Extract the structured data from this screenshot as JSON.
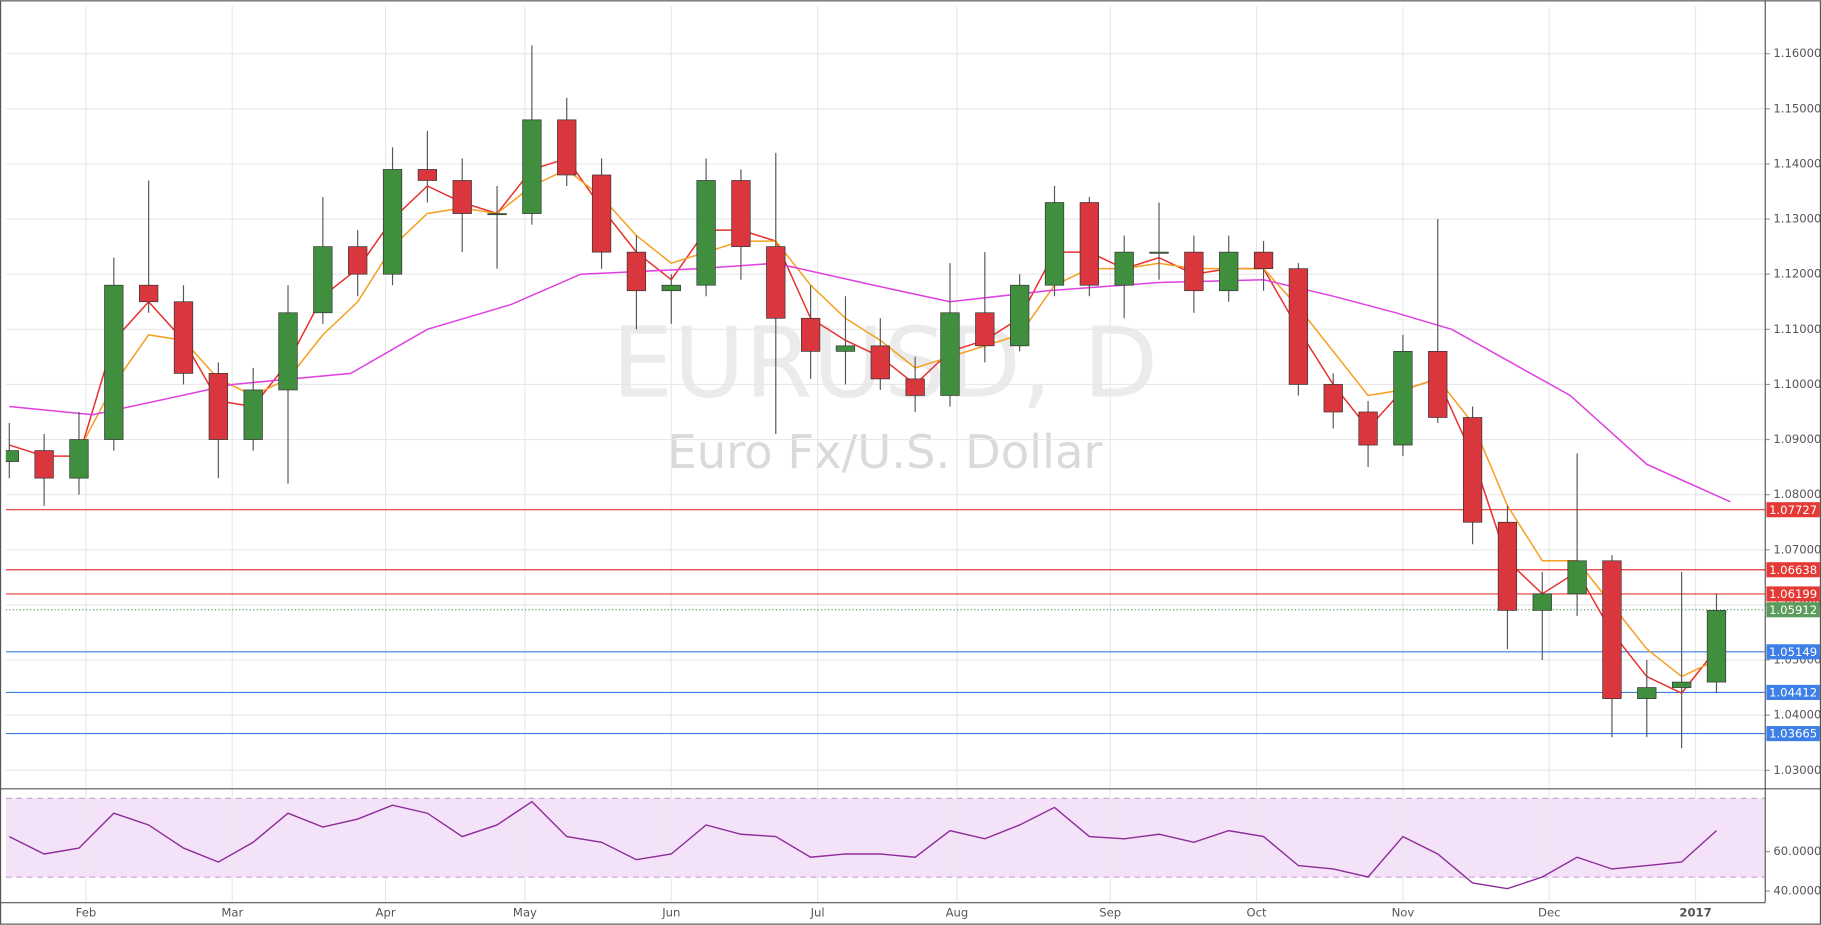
{
  "chart_data": [
    {
      "type": "candlestick",
      "title": "EURUSD, D",
      "subtitle": "Euro Fx/U.S. Dollar",
      "x": [
        0,
        5,
        10,
        15,
        20,
        25,
        30,
        35,
        40,
        45,
        50,
        55,
        60,
        65,
        70,
        75,
        80,
        85,
        90,
        95,
        100,
        105,
        110,
        115,
        120,
        125,
        130,
        135,
        140,
        145,
        150,
        155,
        160,
        165,
        170,
        175,
        180,
        185,
        190,
        195,
        200,
        205,
        210,
        215,
        220,
        225,
        230,
        235,
        240,
        245
      ],
      "open": [
        1.086,
        1.088,
        1.083,
        1.09,
        1.118,
        1.115,
        1.102,
        1.09,
        1.099,
        1.113,
        1.125,
        1.12,
        1.139,
        1.137,
        1.131,
        1.131,
        1.148,
        1.138,
        1.124,
        1.117,
        1.118,
        1.137,
        1.125,
        1.112,
        1.106,
        1.107,
        1.101,
        1.098,
        1.113,
        1.107,
        1.118,
        1.133,
        1.118,
        1.124,
        1.124,
        1.117,
        1.124,
        1.121,
        1.1,
        1.095,
        1.089,
        1.106,
        1.094,
        1.075,
        1.059,
        1.062,
        1.068,
        1.043,
        1.045,
        1.046
      ],
      "high": [
        1.093,
        1.091,
        1.095,
        1.123,
        1.137,
        1.118,
        1.104,
        1.103,
        1.118,
        1.134,
        1.128,
        1.143,
        1.146,
        1.141,
        1.136,
        1.1615,
        1.152,
        1.141,
        1.127,
        1.12,
        1.141,
        1.139,
        1.142,
        1.118,
        1.116,
        1.112,
        1.105,
        1.122,
        1.124,
        1.12,
        1.136,
        1.134,
        1.127,
        1.133,
        1.127,
        1.127,
        1.126,
        1.122,
        1.102,
        1.097,
        1.109,
        1.13,
        1.096,
        1.078,
        1.066,
        1.0875,
        1.069,
        1.05,
        1.066,
        1.062
      ],
      "low": [
        1.083,
        1.078,
        1.08,
        1.088,
        1.113,
        1.1,
        1.083,
        1.088,
        1.082,
        1.111,
        1.116,
        1.118,
        1.133,
        1.124,
        1.121,
        1.129,
        1.136,
        1.121,
        1.11,
        1.111,
        1.116,
        1.119,
        1.091,
        1.101,
        1.1,
        1.099,
        1.095,
        1.096,
        1.104,
        1.106,
        1.116,
        1.116,
        1.112,
        1.119,
        1.113,
        1.115,
        1.117,
        1.098,
        1.092,
        1.085,
        1.087,
        1.093,
        1.071,
        1.052,
        1.05,
        1.058,
        1.036,
        1.036,
        1.034,
        1.044
      ],
      "close": [
        1.088,
        1.083,
        1.09,
        1.118,
        1.115,
        1.102,
        1.09,
        1.099,
        1.113,
        1.125,
        1.12,
        1.139,
        1.137,
        1.131,
        1.131,
        1.148,
        1.138,
        1.124,
        1.117,
        1.118,
        1.137,
        1.125,
        1.112,
        1.106,
        1.107,
        1.101,
        1.098,
        1.113,
        1.107,
        1.118,
        1.133,
        1.118,
        1.124,
        1.124,
        1.117,
        1.124,
        1.121,
        1.1,
        1.095,
        1.089,
        1.106,
        1.094,
        1.075,
        1.059,
        1.062,
        1.068,
        1.043,
        1.045,
        1.046,
        1.059
      ],
      "up_color": "#3f8f3f",
      "down_color": "#d9363e",
      "lines": [
        {
          "color": "#e8312e",
          "values": [
            1.089,
            1.087,
            1.087,
            1.108,
            1.115,
            1.108,
            1.097,
            1.096,
            1.104,
            1.116,
            1.121,
            1.13,
            1.136,
            1.133,
            1.131,
            1.139,
            1.141,
            1.132,
            1.124,
            1.119,
            1.128,
            1.128,
            1.126,
            1.112,
            1.108,
            1.105,
            1.1,
            1.106,
            1.108,
            1.112,
            1.124,
            1.124,
            1.121,
            1.123,
            1.12,
            1.121,
            1.121,
            1.11,
            1.1,
            1.092,
            1.099,
            1.101,
            1.087,
            1.068,
            1.062,
            1.066,
            1.055,
            1.047,
            1.044,
            1.052
          ]
        },
        {
          "color": "#f5a020",
          "values": [
            null,
            null,
            1.088,
            1.1,
            1.109,
            1.108,
            1.101,
            1.098,
            1.101,
            1.109,
            1.115,
            1.125,
            1.131,
            1.132,
            1.131,
            1.136,
            1.139,
            1.134,
            1.127,
            1.122,
            1.124,
            1.126,
            1.126,
            1.118,
            1.112,
            1.108,
            1.103,
            1.105,
            1.107,
            1.109,
            1.118,
            1.121,
            1.121,
            1.122,
            1.121,
            1.121,
            1.121,
            1.114,
            1.106,
            1.098,
            1.099,
            1.101,
            1.093,
            1.078,
            1.068,
            1.068,
            1.06,
            1.052,
            1.047,
            1.05
          ]
        },
        {
          "color": "#e040e0",
          "x": [
            0,
            12,
            32,
            49,
            60,
            72,
            82,
            99,
            110,
            124,
            135,
            149,
            165,
            180,
            190,
            199,
            207,
            224,
            235,
            247
          ],
          "values": [
            1.096,
            1.0945,
            1.1,
            1.102,
            1.11,
            1.1145,
            1.12,
            1.121,
            1.122,
            1.118,
            1.115,
            1.117,
            1.1185,
            1.119,
            1.116,
            1.113,
            1.11,
            1.098,
            1.0855,
            1.0787
          ]
        }
      ],
      "levels": [
        {
          "value": 1.07727,
          "color": "#e53935"
        },
        {
          "value": 1.06638,
          "color": "#e53935"
        },
        {
          "value": 1.06199,
          "color": "#e53935"
        },
        {
          "value": 1.05149,
          "color": "#3d7fe6"
        },
        {
          "value": 1.04412,
          "color": "#3d7fe6"
        },
        {
          "value": 1.03665,
          "color": "#3d7fe6"
        }
      ],
      "last_price": {
        "value": 1.05912,
        "color": "#5b9b5b"
      },
      "ylim": [
        1.02684,
        1.16864
      ],
      "yticks": [
        {
          "value": 1.03,
          "label": "1.03000"
        },
        {
          "value": 1.04,
          "label": "1.04000"
        },
        {
          "value": 1.05,
          "label": "1.05000"
        },
        {
          "value": 1.06,
          "label": "1.06000"
        },
        {
          "value": 1.07,
          "label": "1.07000"
        },
        {
          "value": 1.08,
          "label": "1.08000"
        },
        {
          "value": 1.09,
          "label": "1.09000"
        },
        {
          "value": 1.1,
          "label": "1.10000"
        },
        {
          "value": 1.11,
          "label": "1.11000"
        },
        {
          "value": 1.12,
          "label": "1.12000"
        },
        {
          "value": 1.13,
          "label": "1.13000"
        },
        {
          "value": 1.14,
          "label": "1.14000"
        },
        {
          "value": 1.15,
          "label": "1.15000"
        },
        {
          "value": 1.16,
          "label": "1.16000"
        }
      ],
      "grid": true
    },
    {
      "type": "line",
      "x": [
        0,
        5,
        10,
        15,
        20,
        25,
        30,
        35,
        40,
        45,
        50,
        55,
        60,
        65,
        70,
        75,
        80,
        85,
        90,
        95,
        100,
        105,
        110,
        115,
        120,
        125,
        130,
        135,
        140,
        145,
        150,
        155,
        160,
        165,
        170,
        175,
        180,
        185,
        190,
        195,
        200,
        205,
        210,
        215,
        220,
        225,
        230,
        235,
        240,
        245
      ],
      "values": [
        67.6,
        58.8,
        61.8,
        79.4,
        73.5,
        61.8,
        54.7,
        64.7,
        79.4,
        72.4,
        76.5,
        83.5,
        79.4,
        67.6,
        73.5,
        85.3,
        67.6,
        64.7,
        55.9,
        58.8,
        73.5,
        68.8,
        67.6,
        57.1,
        58.8,
        58.8,
        57.1,
        70.6,
        66.5,
        73.5,
        82.4,
        67.6,
        66.5,
        68.8,
        64.7,
        70.6,
        67.6,
        52.9,
        51.2,
        47.1,
        67.6,
        58.8,
        44.1,
        41.2,
        47.1,
        57.1,
        51.2,
        52.9,
        54.7,
        70.6
      ],
      "color": "#8e2a9a",
      "band": [
        47,
        87
      ],
      "band_color": "#f3e2f8",
      "ylim": [
        34.7,
        91.2
      ],
      "yticks": [
        {
          "value": 40,
          "label": "40.0000"
        },
        {
          "value": 60,
          "label": "60.0000"
        }
      ],
      "xlim": [
        -0.5,
        252
      ],
      "xticks": [
        {
          "value": 11,
          "label": "Feb"
        },
        {
          "value": 32,
          "label": "Mar"
        },
        {
          "value": 54,
          "label": "Apr"
        },
        {
          "value": 74,
          "label": "May"
        },
        {
          "value": 95,
          "label": "Jun"
        },
        {
          "value": 116,
          "label": "Jul"
        },
        {
          "value": 136,
          "label": "Aug"
        },
        {
          "value": 158,
          "label": "Sep"
        },
        {
          "value": 179,
          "label": "Oct"
        },
        {
          "value": 200,
          "label": "Nov"
        },
        {
          "value": 221,
          "label": "Dec"
        },
        {
          "value": 242,
          "label": "2017"
        }
      ],
      "grid": true
    }
  ]
}
